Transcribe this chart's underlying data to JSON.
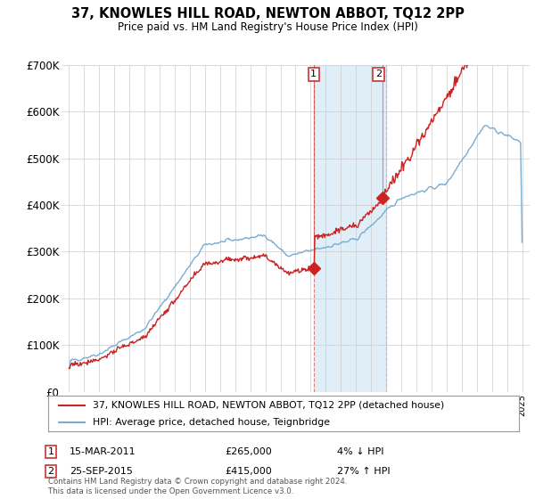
{
  "title": "37, KNOWLES HILL ROAD, NEWTON ABBOT, TQ12 2PP",
  "subtitle": "Price paid vs. HM Land Registry's House Price Index (HPI)",
  "legend_line1": "37, KNOWLES HILL ROAD, NEWTON ABBOT, TQ12 2PP (detached house)",
  "legend_line2": "HPI: Average price, detached house, Teignbridge",
  "annotation1_date": "15-MAR-2011",
  "annotation1_price": "£265,000",
  "annotation1_pct": "4% ↓ HPI",
  "annotation2_date": "25-SEP-2015",
  "annotation2_price": "£415,000",
  "annotation2_pct": "27% ↑ HPI",
  "footnote": "Contains HM Land Registry data © Crown copyright and database right 2024.\nThis data is licensed under the Open Government Licence v3.0.",
  "hpi_color": "#7aadd4",
  "price_color": "#cc2222",
  "shade_color": "#e0eef8",
  "background_color": "#ffffff",
  "grid_color": "#cccccc",
  "ylim": [
    0,
    700000
  ],
  "yticks": [
    0,
    100000,
    200000,
    300000,
    400000,
    500000,
    600000,
    700000
  ],
  "ytick_labels": [
    "£0",
    "£100K",
    "£200K",
    "£300K",
    "£400K",
    "£500K",
    "£600K",
    "£700K"
  ],
  "shade_x_start": 2011.2,
  "shade_x_end": 2016.0,
  "marker1_x": 2011.2,
  "marker1_y": 265000,
  "marker2_x": 2015.75,
  "marker2_y": 415000,
  "xlim_start": 1994.5,
  "xlim_end": 2025.5
}
